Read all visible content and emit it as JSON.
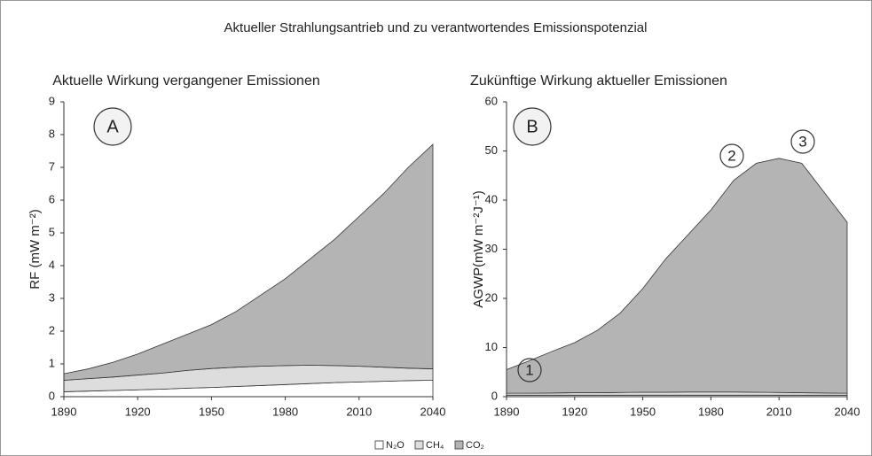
{
  "title": "Aktueller Strahlungsantrieb und zu verantwortendes Emissionspotenzial",
  "legend": [
    "N₂O",
    "CH₄",
    "CO₂"
  ],
  "chart_data": [
    {
      "type": "area",
      "subtitle": "Aktuelle Wirkung vergangener  Emissionen",
      "ylabel": "RF (mW m⁻²)",
      "annotations": [
        "A"
      ],
      "x": [
        1890,
        1900,
        1910,
        1920,
        1930,
        1940,
        1950,
        1960,
        1970,
        1980,
        1990,
        2000,
        2010,
        2020,
        2030,
        2040
      ],
      "xlim": [
        1890,
        2040
      ],
      "xticks": [
        1890,
        1920,
        1950,
        1980,
        2010,
        2040
      ],
      "ylim": [
        0,
        9
      ],
      "yticks": [
        0,
        1,
        2,
        3,
        4,
        5,
        6,
        7,
        8,
        9
      ],
      "series": [
        {
          "name": "N₂O",
          "color": "#ffffff",
          "values": [
            0.15,
            0.17,
            0.19,
            0.21,
            0.23,
            0.26,
            0.28,
            0.31,
            0.34,
            0.37,
            0.4,
            0.43,
            0.45,
            0.47,
            0.49,
            0.5
          ]
        },
        {
          "name": "CH₄",
          "color": "#dddddd",
          "values": [
            0.35,
            0.38,
            0.41,
            0.45,
            0.49,
            0.54,
            0.58,
            0.59,
            0.59,
            0.58,
            0.56,
            0.52,
            0.48,
            0.43,
            0.38,
            0.35
          ]
        },
        {
          "name": "CO₂",
          "color": "#b4b4b4",
          "values": [
            0.2,
            0.3,
            0.45,
            0.64,
            0.88,
            1.1,
            1.34,
            1.7,
            2.17,
            2.65,
            3.24,
            3.85,
            4.57,
            5.3,
            6.13,
            6.85
          ]
        }
      ]
    },
    {
      "type": "area",
      "subtitle": "Zukünftige Wirkung aktueller  Emissionen",
      "ylabel": "AGWP(mW m⁻²J⁻¹)",
      "annotations": [
        "B",
        "1",
        "2",
        "3"
      ],
      "x": [
        1890,
        1900,
        1910,
        1920,
        1930,
        1940,
        1950,
        1960,
        1970,
        1980,
        1990,
        2000,
        2010,
        2020,
        2030,
        2040
      ],
      "xlim": [
        1890,
        2040
      ],
      "xticks": [
        1890,
        1920,
        1950,
        1980,
        2010,
        2040
      ],
      "ylim": [
        0,
        60
      ],
      "yticks": [
        0,
        10,
        20,
        30,
        40,
        50,
        60
      ],
      "series": [
        {
          "name": "N₂O",
          "color": "#ffffff",
          "values": [
            0.3,
            0.3,
            0.3,
            0.3,
            0.3,
            0.3,
            0.3,
            0.3,
            0.3,
            0.3,
            0.3,
            0.3,
            0.3,
            0.3,
            0.3,
            0.3
          ]
        },
        {
          "name": "CH₄",
          "color": "#dddddd",
          "values": [
            0.4,
            0.4,
            0.45,
            0.5,
            0.5,
            0.55,
            0.6,
            0.6,
            0.65,
            0.65,
            0.65,
            0.6,
            0.55,
            0.5,
            0.45,
            0.4
          ]
        },
        {
          "name": "CO₂",
          "color": "#b4b4b4",
          "values": [
            4.8,
            6.6,
            8.45,
            10.2,
            12.7,
            16.15,
            21.1,
            27.1,
            32.05,
            37.05,
            43.05,
            46.6,
            47.65,
            46.7,
            40.75,
            34.8
          ]
        }
      ]
    }
  ]
}
